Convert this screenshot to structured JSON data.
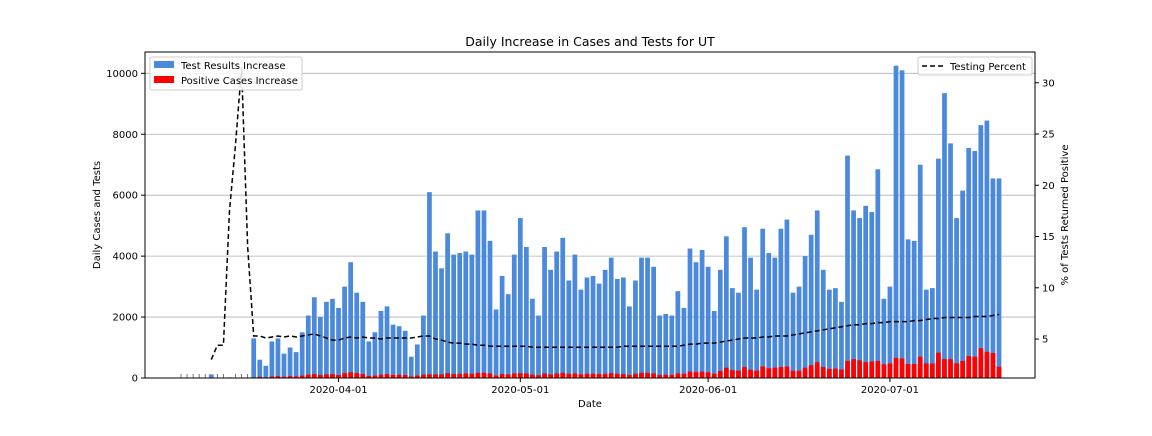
{
  "chart_data": {
    "type": "bar",
    "title": "Daily Increase in Cases and Tests for UT",
    "xlabel": "Date",
    "ylabel": "Daily Cases and Tests",
    "y2label": "% of Tests Returned Positive",
    "start_date": "2020-03-06",
    "ylim": [
      0,
      10700
    ],
    "y2lim": [
      1.2,
      33
    ],
    "yticks": [
      0,
      2000,
      4000,
      6000,
      8000,
      10000
    ],
    "y2ticks": [
      5,
      10,
      15,
      20,
      25,
      30
    ],
    "xticks": [
      "2020-04-01",
      "2020-05-01",
      "2020-06-01",
      "2020-07-01"
    ],
    "grid": "y",
    "legend_left": "top-left",
    "legend_right": "top-right",
    "series": [
      {
        "name": "Test Results Increase",
        "color": "#4a89dc",
        "type": "bar",
        "values": [
          0,
          0,
          0,
          0,
          0,
          120,
          0,
          0,
          0,
          0,
          0,
          0,
          1300,
          600,
          400,
          1200,
          1300,
          800,
          1000,
          850,
          1500,
          2050,
          2650,
          2000,
          2500,
          2600,
          2300,
          3000,
          3800,
          2800,
          2500,
          1200,
          1500,
          2200,
          2350,
          1750,
          1700,
          1550,
          700,
          1100,
          2050,
          6100,
          4150,
          3600,
          4750,
          4050,
          4100,
          4150,
          4050,
          5500,
          5500,
          4500,
          2250,
          3350,
          2750,
          4050,
          5250,
          4300,
          2600,
          2050,
          4300,
          3550,
          4150,
          4600,
          3200,
          4050,
          2900,
          3300,
          3350,
          3100,
          3550,
          3950,
          3250,
          3300,
          2350,
          3200,
          3950,
          3950,
          3650,
          2050,
          2100,
          2050,
          2850,
          2300,
          4250,
          3800,
          4200,
          3650,
          2200,
          3550,
          4650,
          2950,
          2800,
          4950,
          3950,
          2900,
          4900,
          4100,
          3950,
          4900,
          5200,
          2800,
          3000,
          4000,
          4700,
          5500,
          3550,
          2900,
          2950,
          2500,
          7300,
          5500,
          5250,
          5650,
          5450,
          6850,
          2600,
          3000,
          10250,
          10100,
          4550,
          4500,
          7000,
          2900,
          2950,
          7200,
          9350,
          7700,
          5250,
          6150,
          7550,
          7450,
          8300,
          8450,
          6550,
          6550
        ]
      },
      {
        "name": "Positive Cases Increase",
        "color": "#ff0000",
        "type": "bar",
        "values": [
          0,
          0,
          0,
          0,
          0,
          0,
          0,
          0,
          20,
          0,
          0,
          0,
          20,
          40,
          20,
          50,
          60,
          40,
          60,
          50,
          80,
          110,
          130,
          100,
          120,
          130,
          100,
          160,
          190,
          160,
          130,
          70,
          80,
          110,
          130,
          100,
          110,
          100,
          50,
          80,
          110,
          120,
          120,
          120,
          160,
          130,
          140,
          150,
          140,
          170,
          170,
          150,
          80,
          130,
          120,
          150,
          160,
          150,
          110,
          90,
          150,
          120,
          150,
          170,
          140,
          150,
          120,
          140,
          140,
          130,
          140,
          160,
          140,
          130,
          100,
          140,
          170,
          170,
          150,
          100,
          110,
          100,
          150,
          140,
          210,
          200,
          210,
          190,
          140,
          230,
          340,
          260,
          240,
          360,
          270,
          240,
          380,
          320,
          340,
          360,
          380,
          240,
          240,
          340,
          420,
          520,
          360,
          300,
          310,
          280,
          560,
          620,
          580,
          520,
          540,
          560,
          450,
          480,
          660,
          640,
          460,
          460,
          700,
          480,
          480,
          830,
          620,
          620,
          480,
          560,
          720,
          700,
          980,
          860,
          820,
          370
        ]
      },
      {
        "name": "Testing Percent",
        "color": "#000000",
        "type": "line",
        "dashed": true,
        "values": [
          null,
          null,
          null,
          null,
          null,
          3.0,
          4.4,
          4.4,
          17.5,
          24.0,
          31.5,
          14.0,
          5.3,
          5.3,
          5.1,
          5.2,
          5.3,
          5.2,
          5.3,
          5.2,
          5.3,
          5.4,
          5.5,
          5.3,
          5.1,
          4.9,
          4.9,
          5.1,
          5.2,
          5.1,
          5.2,
          5.1,
          5.1,
          5.0,
          5.1,
          5.1,
          5.1,
          5.1,
          5.1,
          5.2,
          5.3,
          5.3,
          5.0,
          4.9,
          4.7,
          4.6,
          4.6,
          4.5,
          4.5,
          4.4,
          4.4,
          4.3,
          4.3,
          4.3,
          4.3,
          4.3,
          4.3,
          4.3,
          4.2,
          4.2,
          4.2,
          4.2,
          4.2,
          4.2,
          4.2,
          4.2,
          4.2,
          4.2,
          4.2,
          4.2,
          4.2,
          4.2,
          4.2,
          4.3,
          4.3,
          4.3,
          4.3,
          4.3,
          4.3,
          4.3,
          4.3,
          4.3,
          4.3,
          4.4,
          4.5,
          4.5,
          4.6,
          4.6,
          4.6,
          4.7,
          4.8,
          4.9,
          5.0,
          5.1,
          5.1,
          5.1,
          5.2,
          5.2,
          5.3,
          5.3,
          5.3,
          5.4,
          5.5,
          5.6,
          5.7,
          5.8,
          5.9,
          6.0,
          6.1,
          6.2,
          6.3,
          6.4,
          6.4,
          6.5,
          6.5,
          6.6,
          6.6,
          6.7,
          6.7,
          6.7,
          6.7,
          6.8,
          6.8,
          6.9,
          7.0,
          7.0,
          7.1,
          7.1,
          7.1,
          7.1,
          7.1,
          7.2,
          7.2,
          7.2,
          7.3,
          7.4
        ]
      }
    ]
  }
}
